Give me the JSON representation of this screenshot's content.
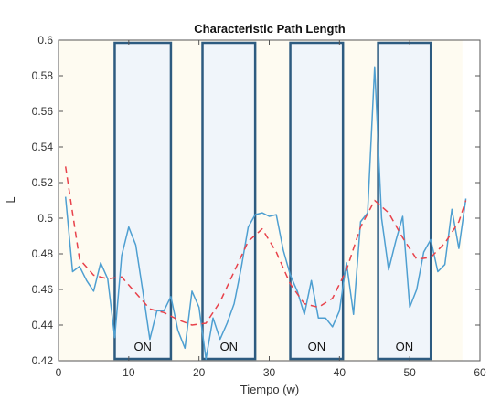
{
  "chart_data": {
    "type": "line",
    "title": "Characteristic Path Length",
    "xlabel": "Tiempo (w)",
    "ylabel": "L",
    "xlim": [
      0,
      60
    ],
    "ylim": [
      0.42,
      0.6
    ],
    "xticks": [
      "0",
      "10",
      "20",
      "30",
      "40",
      "50",
      "60"
    ],
    "yticks": [
      "0.42",
      "0.44",
      "0.46",
      "0.48",
      "0.5",
      "0.52",
      "0.54",
      "0.56",
      "0.58",
      "0.6"
    ],
    "grid": false,
    "shaded_span": [
      0,
      57.5
    ],
    "on_periods": [
      {
        "label": "ON",
        "x0": 8,
        "x1": 16
      },
      {
        "label": "ON",
        "x0": 20.5,
        "x1": 28
      },
      {
        "label": "ON",
        "x0": 33,
        "x1": 40.5
      },
      {
        "label": "ON",
        "x0": 45.5,
        "x1": 53
      }
    ],
    "series": [
      {
        "style": "solid",
        "color": "#4e9fd1",
        "x": [
          1,
          2,
          3,
          4,
          5,
          6,
          7,
          8,
          9,
          10,
          11,
          12,
          13,
          14,
          15,
          16,
          17,
          18,
          19,
          20,
          21,
          22,
          23,
          24,
          25,
          26,
          27,
          28,
          29,
          30,
          31,
          32,
          33,
          34,
          35,
          36,
          37,
          38,
          39,
          40,
          41,
          42,
          43,
          44,
          45,
          46,
          47,
          48,
          49,
          50,
          51,
          52,
          53,
          54,
          55,
          56,
          57,
          58
        ],
        "y": [
          0.512,
          0.47,
          0.473,
          0.465,
          0.459,
          0.475,
          0.466,
          0.433,
          0.479,
          0.495,
          0.485,
          0.459,
          0.432,
          0.448,
          0.448,
          0.456,
          0.437,
          0.427,
          0.459,
          0.45,
          0.421,
          0.444,
          0.432,
          0.441,
          0.452,
          0.472,
          0.495,
          0.502,
          0.503,
          0.501,
          0.502,
          0.482,
          0.468,
          0.459,
          0.446,
          0.465,
          0.444,
          0.444,
          0.439,
          0.448,
          0.475,
          0.446,
          0.498,
          0.503,
          0.585,
          0.5,
          0.471,
          0.487,
          0.501,
          0.45,
          0.46,
          0.481,
          0.488,
          0.47,
          0.474,
          0.505,
          0.483,
          0.511
        ]
      },
      {
        "style": "dashed",
        "color": "#e8424b",
        "x": [
          1,
          3,
          5,
          7,
          9,
          11,
          13,
          15,
          17,
          19,
          21,
          23,
          25,
          27,
          29,
          31,
          33,
          35,
          37,
          39,
          41,
          43,
          45,
          47,
          49,
          51,
          53,
          55,
          57,
          58
        ],
        "y": [
          0.529,
          0.477,
          0.468,
          0.466,
          0.467,
          0.458,
          0.449,
          0.447,
          0.443,
          0.44,
          0.441,
          0.453,
          0.47,
          0.487,
          0.494,
          0.481,
          0.463,
          0.452,
          0.45,
          0.455,
          0.471,
          0.495,
          0.51,
          0.503,
          0.489,
          0.477,
          0.478,
          0.486,
          0.498,
          0.51
        ]
      }
    ]
  }
}
